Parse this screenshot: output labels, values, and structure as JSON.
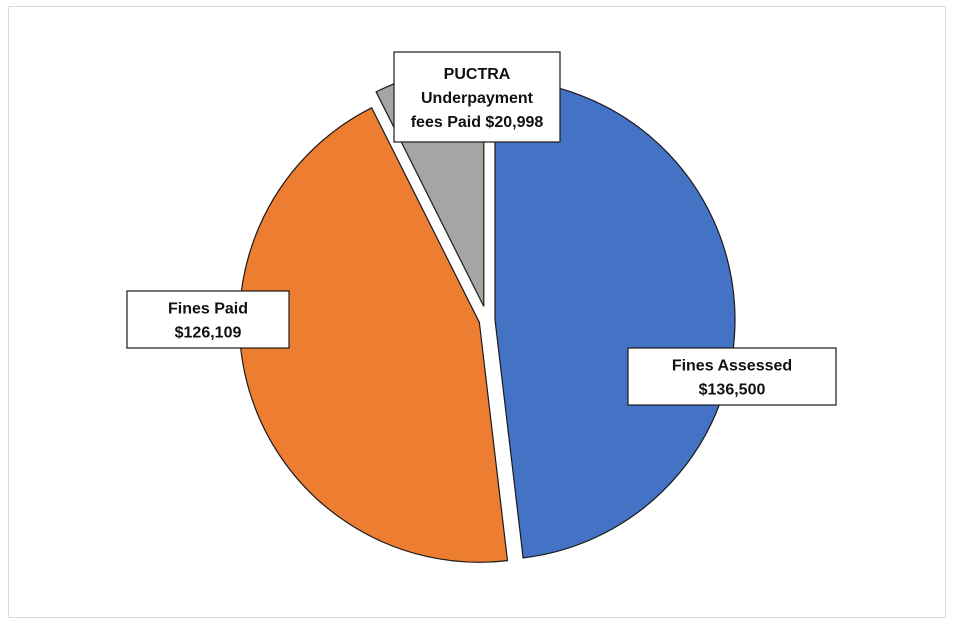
{
  "chart_data": {
    "type": "pie",
    "title": "",
    "slices": [
      {
        "label": "Fines Assessed",
        "value": 136500,
        "color": "#4472C4",
        "label_lines": [
          "Fines Assessed",
          "$136,500"
        ]
      },
      {
        "label": "Fines Paid",
        "value": 126109,
        "color": "#ED7D31",
        "label_lines": [
          "Fines Paid",
          "$126,109"
        ]
      },
      {
        "label": "PUCTRA Underpayment fees Paid",
        "value": 20998,
        "color": "#A5A5A5",
        "label_lines": [
          "PUCTRA",
          "Underpayment",
          "fees Paid $20,998"
        ]
      }
    ],
    "legend": "none",
    "exploded": true
  }
}
